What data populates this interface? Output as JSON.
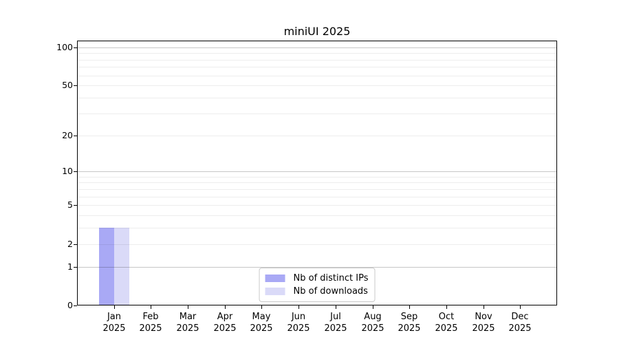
{
  "chart_data": {
    "type": "bar",
    "title": "miniUI 2025",
    "categories": [
      "Jan 2025",
      "Feb 2025",
      "Mar 2025",
      "Apr 2025",
      "May 2025",
      "Jun 2025",
      "Jul 2025",
      "Aug 2025",
      "Sep 2025",
      "Oct 2025",
      "Nov 2025",
      "Dec 2025"
    ],
    "series": [
      {
        "name": "Nb of distinct IPs",
        "color": "#a9a9f5",
        "values": [
          3,
          0,
          0,
          0,
          0,
          0,
          0,
          0,
          0,
          0,
          0,
          0
        ]
      },
      {
        "name": "Nb of downloads",
        "color": "#dadaf8",
        "values": [
          3,
          0,
          0,
          0,
          0,
          0,
          0,
          0,
          0,
          0,
          0,
          0
        ]
      }
    ],
    "xlabel": "",
    "ylabel": "",
    "yscale": "log1p",
    "ylim": [
      0,
      113
    ],
    "y_ticks": [
      0,
      1,
      2,
      5,
      10,
      20,
      50,
      100
    ],
    "grid_major": [
      1,
      10,
      100
    ],
    "grid_minor": [
      2,
      3,
      4,
      5,
      6,
      7,
      8,
      9,
      20,
      30,
      40,
      50,
      60,
      70,
      80,
      90
    ],
    "grid": "on",
    "legend_position": "lower center"
  },
  "colors": {
    "background": "#ffffff",
    "frame": "#000000",
    "ips_bar": "#a9a9f5",
    "downloads_bar": "#dadaf8"
  }
}
